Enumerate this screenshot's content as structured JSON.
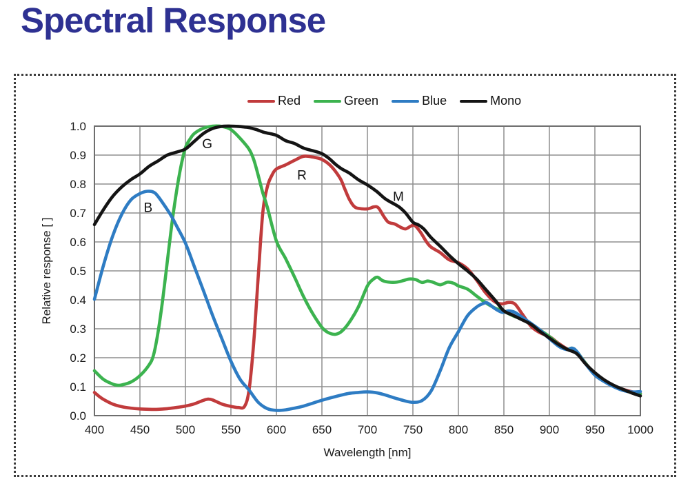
{
  "page": {
    "title": "Spectral Response",
    "title_color": "#2e3192",
    "background": "#ffffff"
  },
  "chart_data": {
    "type": "line",
    "title": "Spectral Response",
    "xlabel": "Wavelength [nm]",
    "ylabel": "Relative response [ ]",
    "x_range": [
      400,
      1000
    ],
    "y_range": [
      0,
      1
    ],
    "x_ticks": [
      400,
      450,
      500,
      550,
      600,
      650,
      700,
      750,
      800,
      850,
      900,
      950,
      1000
    ],
    "y_ticks": [
      0.0,
      0.1,
      0.2,
      0.3,
      0.4,
      0.5,
      0.6,
      0.7,
      0.8,
      0.9,
      1.0
    ],
    "grid": true,
    "grid_color": "#8e8e8e",
    "border_color": "#6e6e6e",
    "legend_position": "top",
    "annotations": [
      {
        "text": "G",
        "x": 524,
        "y": 0.94
      },
      {
        "text": "B",
        "x": 459,
        "y": 0.72
      },
      {
        "text": "R",
        "x": 628,
        "y": 0.832
      },
      {
        "text": "M",
        "x": 734,
        "y": 0.758
      }
    ],
    "series": [
      {
        "name": "Red",
        "color": "#c13b3c",
        "points": [
          [
            400,
            0.08
          ],
          [
            405,
            0.067
          ],
          [
            410,
            0.056
          ],
          [
            420,
            0.04
          ],
          [
            430,
            0.031
          ],
          [
            440,
            0.026
          ],
          [
            450,
            0.023
          ],
          [
            460,
            0.022
          ],
          [
            470,
            0.022
          ],
          [
            480,
            0.024
          ],
          [
            490,
            0.028
          ],
          [
            500,
            0.033
          ],
          [
            510,
            0.041
          ],
          [
            520,
            0.053
          ],
          [
            525,
            0.057
          ],
          [
            530,
            0.054
          ],
          [
            540,
            0.04
          ],
          [
            550,
            0.032
          ],
          [
            558,
            0.028
          ],
          [
            565,
            0.032
          ],
          [
            570,
            0.09
          ],
          [
            575,
            0.25
          ],
          [
            580,
            0.48
          ],
          [
            585,
            0.7
          ],
          [
            590,
            0.79
          ],
          [
            595,
            0.83
          ],
          [
            600,
            0.852
          ],
          [
            610,
            0.866
          ],
          [
            620,
            0.882
          ],
          [
            630,
            0.896
          ],
          [
            640,
            0.893
          ],
          [
            650,
            0.885
          ],
          [
            660,
            0.862
          ],
          [
            670,
            0.82
          ],
          [
            675,
            0.784
          ],
          [
            680,
            0.748
          ],
          [
            685,
            0.724
          ],
          [
            690,
            0.716
          ],
          [
            700,
            0.714
          ],
          [
            707,
            0.721
          ],
          [
            712,
            0.718
          ],
          [
            718,
            0.688
          ],
          [
            723,
            0.668
          ],
          [
            730,
            0.662
          ],
          [
            737,
            0.65
          ],
          [
            742,
            0.645
          ],
          [
            748,
            0.655
          ],
          [
            752,
            0.657
          ],
          [
            758,
            0.635
          ],
          [
            765,
            0.6
          ],
          [
            770,
            0.582
          ],
          [
            780,
            0.563
          ],
          [
            790,
            0.538
          ],
          [
            800,
            0.528
          ],
          [
            810,
            0.507
          ],
          [
            820,
            0.468
          ],
          [
            830,
            0.424
          ],
          [
            840,
            0.393
          ],
          [
            848,
            0.386
          ],
          [
            855,
            0.391
          ],
          [
            862,
            0.386
          ],
          [
            870,
            0.352
          ],
          [
            880,
            0.308
          ],
          [
            890,
            0.286
          ],
          [
            900,
            0.273
          ],
          [
            910,
            0.25
          ],
          [
            920,
            0.23
          ],
          [
            925,
            0.232
          ],
          [
            930,
            0.221
          ],
          [
            940,
            0.18
          ],
          [
            950,
            0.143
          ],
          [
            960,
            0.12
          ],
          [
            970,
            0.104
          ],
          [
            980,
            0.092
          ],
          [
            990,
            0.083
          ],
          [
            1000,
            0.076
          ]
        ]
      },
      {
        "name": "Green",
        "color": "#3cb34f",
        "points": [
          [
            400,
            0.155
          ],
          [
            410,
            0.125
          ],
          [
            420,
            0.109
          ],
          [
            425,
            0.105
          ],
          [
            430,
            0.106
          ],
          [
            440,
            0.116
          ],
          [
            450,
            0.138
          ],
          [
            460,
            0.175
          ],
          [
            465,
            0.21
          ],
          [
            470,
            0.29
          ],
          [
            475,
            0.4
          ],
          [
            480,
            0.53
          ],
          [
            485,
            0.66
          ],
          [
            490,
            0.77
          ],
          [
            495,
            0.86
          ],
          [
            500,
            0.925
          ],
          [
            505,
            0.955
          ],
          [
            510,
            0.975
          ],
          [
            520,
            0.993
          ],
          [
            530,
            1.0
          ],
          [
            540,
            0.999
          ],
          [
            550,
            0.988
          ],
          [
            560,
            0.958
          ],
          [
            570,
            0.92
          ],
          [
            575,
            0.885
          ],
          [
            580,
            0.83
          ],
          [
            585,
            0.77
          ],
          [
            590,
            0.72
          ],
          [
            600,
            0.603
          ],
          [
            610,
            0.543
          ],
          [
            620,
            0.478
          ],
          [
            630,
            0.41
          ],
          [
            640,
            0.352
          ],
          [
            650,
            0.305
          ],
          [
            657,
            0.287
          ],
          [
            665,
            0.281
          ],
          [
            672,
            0.292
          ],
          [
            680,
            0.322
          ],
          [
            690,
            0.375
          ],
          [
            700,
            0.448
          ],
          [
            706,
            0.47
          ],
          [
            711,
            0.478
          ],
          [
            717,
            0.466
          ],
          [
            724,
            0.461
          ],
          [
            732,
            0.461
          ],
          [
            740,
            0.467
          ],
          [
            746,
            0.472
          ],
          [
            753,
            0.47
          ],
          [
            760,
            0.46
          ],
          [
            766,
            0.465
          ],
          [
            772,
            0.461
          ],
          [
            780,
            0.452
          ],
          [
            788,
            0.461
          ],
          [
            795,
            0.457
          ],
          [
            800,
            0.448
          ],
          [
            810,
            0.437
          ],
          [
            820,
            0.413
          ],
          [
            830,
            0.39
          ],
          [
            840,
            0.372
          ],
          [
            850,
            0.36
          ],
          [
            860,
            0.345
          ],
          [
            870,
            0.333
          ],
          [
            880,
            0.317
          ],
          [
            890,
            0.295
          ],
          [
            900,
            0.273
          ],
          [
            910,
            0.247
          ],
          [
            915,
            0.236
          ],
          [
            920,
            0.229
          ],
          [
            925,
            0.233
          ],
          [
            930,
            0.222
          ],
          [
            940,
            0.18
          ],
          [
            950,
            0.144
          ],
          [
            960,
            0.12
          ],
          [
            970,
            0.104
          ],
          [
            980,
            0.09
          ],
          [
            990,
            0.08
          ],
          [
            1000,
            0.075
          ]
        ]
      },
      {
        "name": "Blue",
        "color": "#2e7cc3",
        "points": [
          [
            400,
            0.402
          ],
          [
            410,
            0.52
          ],
          [
            420,
            0.62
          ],
          [
            430,
            0.695
          ],
          [
            440,
            0.745
          ],
          [
            450,
            0.767
          ],
          [
            458,
            0.775
          ],
          [
            465,
            0.772
          ],
          [
            470,
            0.757
          ],
          [
            480,
            0.712
          ],
          [
            485,
            0.687
          ],
          [
            490,
            0.657
          ],
          [
            500,
            0.596
          ],
          [
            510,
            0.513
          ],
          [
            520,
            0.43
          ],
          [
            530,
            0.345
          ],
          [
            540,
            0.266
          ],
          [
            550,
            0.188
          ],
          [
            560,
            0.126
          ],
          [
            570,
            0.088
          ],
          [
            580,
            0.046
          ],
          [
            590,
            0.024
          ],
          [
            600,
            0.018
          ],
          [
            610,
            0.02
          ],
          [
            620,
            0.026
          ],
          [
            630,
            0.033
          ],
          [
            640,
            0.043
          ],
          [
            650,
            0.053
          ],
          [
            660,
            0.062
          ],
          [
            670,
            0.07
          ],
          [
            680,
            0.077
          ],
          [
            690,
            0.08
          ],
          [
            700,
            0.082
          ],
          [
            710,
            0.079
          ],
          [
            720,
            0.071
          ],
          [
            730,
            0.061
          ],
          [
            740,
            0.052
          ],
          [
            750,
            0.046
          ],
          [
            760,
            0.052
          ],
          [
            770,
            0.085
          ],
          [
            780,
            0.155
          ],
          [
            790,
            0.235
          ],
          [
            800,
            0.29
          ],
          [
            810,
            0.345
          ],
          [
            820,
            0.375
          ],
          [
            827,
            0.387
          ],
          [
            832,
            0.389
          ],
          [
            840,
            0.37
          ],
          [
            848,
            0.357
          ],
          [
            855,
            0.362
          ],
          [
            862,
            0.357
          ],
          [
            870,
            0.34
          ],
          [
            880,
            0.318
          ],
          [
            890,
            0.295
          ],
          [
            900,
            0.266
          ],
          [
            910,
            0.24
          ],
          [
            915,
            0.232
          ],
          [
            920,
            0.228
          ],
          [
            925,
            0.233
          ],
          [
            930,
            0.222
          ],
          [
            940,
            0.178
          ],
          [
            950,
            0.14
          ],
          [
            960,
            0.118
          ],
          [
            970,
            0.101
          ],
          [
            980,
            0.088
          ],
          [
            990,
            0.082
          ],
          [
            1000,
            0.083
          ]
        ]
      },
      {
        "name": "Mono",
        "color": "#141414",
        "points": [
          [
            400,
            0.66
          ],
          [
            410,
            0.712
          ],
          [
            420,
            0.757
          ],
          [
            430,
            0.79
          ],
          [
            440,
            0.815
          ],
          [
            450,
            0.835
          ],
          [
            460,
            0.861
          ],
          [
            470,
            0.88
          ],
          [
            480,
            0.9
          ],
          [
            490,
            0.91
          ],
          [
            500,
            0.921
          ],
          [
            510,
            0.948
          ],
          [
            520,
            0.975
          ],
          [
            530,
            0.992
          ],
          [
            540,
            0.999
          ],
          [
            550,
            1.0
          ],
          [
            558,
            0.999
          ],
          [
            565,
            0.997
          ],
          [
            570,
            0.995
          ],
          [
            578,
            0.988
          ],
          [
            585,
            0.98
          ],
          [
            590,
            0.976
          ],
          [
            600,
            0.968
          ],
          [
            610,
            0.95
          ],
          [
            620,
            0.94
          ],
          [
            630,
            0.924
          ],
          [
            640,
            0.915
          ],
          [
            650,
            0.905
          ],
          [
            658,
            0.888
          ],
          [
            665,
            0.868
          ],
          [
            672,
            0.852
          ],
          [
            680,
            0.838
          ],
          [
            690,
            0.815
          ],
          [
            700,
            0.797
          ],
          [
            710,
            0.775
          ],
          [
            720,
            0.748
          ],
          [
            730,
            0.73
          ],
          [
            736,
            0.718
          ],
          [
            742,
            0.7
          ],
          [
            750,
            0.668
          ],
          [
            756,
            0.659
          ],
          [
            762,
            0.645
          ],
          [
            770,
            0.615
          ],
          [
            780,
            0.585
          ],
          [
            790,
            0.553
          ],
          [
            800,
            0.525
          ],
          [
            810,
            0.5
          ],
          [
            820,
            0.472
          ],
          [
            830,
            0.436
          ],
          [
            840,
            0.4
          ],
          [
            850,
            0.362
          ],
          [
            860,
            0.347
          ],
          [
            870,
            0.331
          ],
          [
            880,
            0.315
          ],
          [
            890,
            0.29
          ],
          [
            900,
            0.268
          ],
          [
            910,
            0.246
          ],
          [
            920,
            0.228
          ],
          [
            930,
            0.214
          ],
          [
            940,
            0.178
          ],
          [
            950,
            0.148
          ],
          [
            960,
            0.124
          ],
          [
            970,
            0.106
          ],
          [
            980,
            0.092
          ],
          [
            990,
            0.079
          ],
          [
            1000,
            0.068
          ]
        ]
      }
    ]
  }
}
